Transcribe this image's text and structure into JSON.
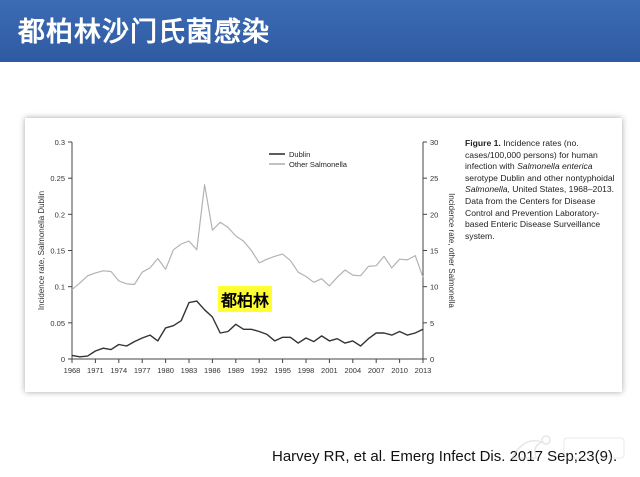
{
  "slide": {
    "title": "都柏林沙门氏菌感染",
    "citation": "Harvey RR, et al. Emerg Infect Dis. 2017 Sep;23(9).",
    "highlight_label": "都柏林",
    "colors": {
      "title_bar": "#3265af",
      "highlight": "#ffff33",
      "dublin": "#333333",
      "other": "#b3b3b3"
    }
  },
  "caption": {
    "bold": "Figure 1.",
    "line1": "Incidence rates (no. cases/100,000 persons) for human infection with",
    "italic1": "Salmonella enterica",
    "line2": "serotype Dublin and other nontyphoidal",
    "italic2": "Salmonella,",
    "line3": "United States, 1968–2013.",
    "data_note": "Data from the Centers for Disease Control and Prevention Laboratory-based Enteric Disease Surveillance system."
  },
  "watermark_icon": "brand-logo-icon",
  "chart_data": {
    "type": "line",
    "x": [
      1968,
      1969,
      1970,
      1971,
      1972,
      1973,
      1974,
      1975,
      1976,
      1977,
      1978,
      1979,
      1980,
      1981,
      1982,
      1983,
      1984,
      1985,
      1986,
      1987,
      1988,
      1989,
      1990,
      1991,
      1992,
      1993,
      1994,
      1995,
      1996,
      1997,
      1998,
      1999,
      2000,
      2001,
      2002,
      2003,
      2004,
      2005,
      2006,
      2007,
      2008,
      2009,
      2010,
      2011,
      2012,
      2013
    ],
    "x_ticks": [
      1968,
      1971,
      1974,
      1977,
      1980,
      1983,
      1986,
      1989,
      1992,
      1995,
      1998,
      2001,
      2004,
      2007,
      2010,
      2013
    ],
    "series": [
      {
        "name": "Dublin",
        "axis": "left",
        "values": [
          0.005,
          0.003,
          0.004,
          0.011,
          0.015,
          0.013,
          0.02,
          0.018,
          0.024,
          0.029,
          0.033,
          0.025,
          0.043,
          0.046,
          0.053,
          0.078,
          0.08,
          0.068,
          0.058,
          0.036,
          0.038,
          0.048,
          0.041,
          0.041,
          0.038,
          0.034,
          0.025,
          0.03,
          0.03,
          0.022,
          0.029,
          0.024,
          0.032,
          0.025,
          0.028,
          0.022,
          0.025,
          0.018,
          0.028,
          0.036,
          0.036,
          0.033,
          0.038,
          0.033,
          0.036,
          0.041
        ]
      },
      {
        "name": "Other Salmonella",
        "axis": "right",
        "values": [
          9.6,
          10.5,
          11.5,
          11.9,
          12.2,
          12.1,
          10.8,
          10.4,
          10.3,
          12.0,
          12.6,
          13.9,
          12.4,
          15.1,
          15.9,
          16.3,
          15.1,
          24.1,
          17.8,
          18.9,
          18.2,
          17.0,
          16.3,
          15.0,
          13.3,
          13.8,
          14.2,
          14.5,
          13.6,
          12.0,
          11.4,
          10.6,
          11.1,
          10.1,
          11.3,
          12.3,
          11.6,
          11.5,
          12.8,
          12.9,
          14.2,
          12.6,
          13.8,
          13.7,
          14.3,
          11.3
        ]
      }
    ],
    "ylabel_left": "Incidence rate, Salmonella Dublin",
    "ylabel_right": "Incidence rate, other Salmonella",
    "ylim_left": [
      0,
      0.3
    ],
    "ylim_right": [
      0,
      30
    ],
    "yticks_left": [
      "0",
      "0.05",
      "0.1",
      "0.15",
      "0.2",
      "0.25",
      "0.3"
    ],
    "yticks_right": [
      "0",
      "5",
      "10",
      "15",
      "20",
      "25",
      "30"
    ],
    "legend": [
      "Dublin",
      "Other Salmonella"
    ],
    "legend_position": "top-left",
    "grid": false
  }
}
